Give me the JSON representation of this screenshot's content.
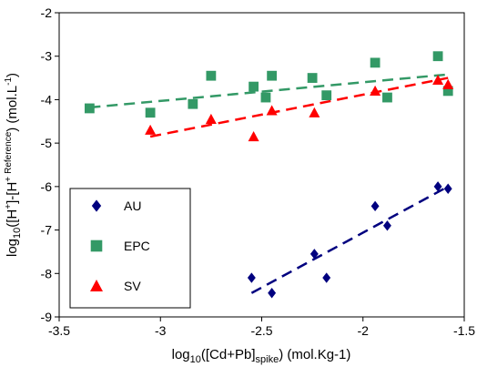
{
  "chart_data": {
    "type": "scatter",
    "title": "",
    "xlabel": "log10([Cd+Pb]spike) (mol.Kg-1)",
    "ylabel": "log10([H+]-[H+ Reference) (mol.L-1)",
    "xlim": [
      -3.5,
      -1.5
    ],
    "ylim": [
      -9,
      -2
    ],
    "x_ticks": [
      -3.5,
      -3,
      -2.5,
      -2,
      -1.5
    ],
    "x_tick_labels": [
      "-3.5",
      "-3",
      "-2.5",
      "-2",
      "-1.5"
    ],
    "y_ticks": [
      -9,
      -8,
      -7,
      -6,
      -5,
      -4,
      -3,
      -2
    ],
    "y_tick_labels": [
      "-9",
      "-8",
      "-7",
      "-6",
      "-5",
      "-4",
      "-3",
      "-2"
    ],
    "grid": false,
    "legend_position": "bottom-left",
    "series": [
      {
        "name": "AU",
        "marker": "diamond",
        "color": "#00007f",
        "points": [
          [
            -2.55,
            -8.1
          ],
          [
            -2.45,
            -8.45
          ],
          [
            -2.24,
            -7.55
          ],
          [
            -2.18,
            -8.1
          ],
          [
            -1.94,
            -6.45
          ],
          [
            -1.88,
            -6.9
          ],
          [
            -1.63,
            -6.0
          ],
          [
            -1.58,
            -6.05
          ]
        ],
        "trendline": [
          [
            -2.55,
            -8.45
          ],
          [
            -1.58,
            -6.0
          ]
        ]
      },
      {
        "name": "EPC",
        "marker": "square",
        "color": "#339966",
        "points": [
          [
            -3.35,
            -4.2
          ],
          [
            -3.05,
            -4.3
          ],
          [
            -2.84,
            -4.1
          ],
          [
            -2.75,
            -3.45
          ],
          [
            -2.54,
            -3.7
          ],
          [
            -2.48,
            -3.95
          ],
          [
            -2.45,
            -3.45
          ],
          [
            -2.25,
            -3.5
          ],
          [
            -2.18,
            -3.9
          ],
          [
            -1.94,
            -3.15
          ],
          [
            -1.88,
            -3.95
          ],
          [
            -1.63,
            -3.0
          ],
          [
            -1.58,
            -3.8
          ]
        ],
        "trendline": [
          [
            -3.35,
            -4.18
          ],
          [
            -1.58,
            -3.42
          ]
        ]
      },
      {
        "name": "SV",
        "marker": "triangle",
        "color": "#ff0000",
        "points": [
          [
            -3.05,
            -4.7
          ],
          [
            -2.75,
            -4.45
          ],
          [
            -2.54,
            -4.85
          ],
          [
            -2.45,
            -4.25
          ],
          [
            -2.24,
            -4.3
          ],
          [
            -1.94,
            -3.8
          ],
          [
            -1.63,
            -3.55
          ],
          [
            -1.58,
            -3.65
          ]
        ],
        "trendline": [
          [
            -3.05,
            -4.85
          ],
          [
            -1.58,
            -3.5
          ]
        ]
      }
    ]
  },
  "axis_titles": {
    "y": {
      "p1": "log",
      "sub1": "10",
      "p2": "([H",
      "sup1": "+",
      "p3": "]-[H",
      "sup2": "+",
      "sub2": "Reference",
      "p4": ") (mol.L",
      "sup3": "-1",
      "p5": ")"
    },
    "x": {
      "p1": "log",
      "sub1": "10",
      "p2": "([Cd+Pb]",
      "sub2": "spike",
      "p3": ") (mol.Kg-1)"
    }
  }
}
